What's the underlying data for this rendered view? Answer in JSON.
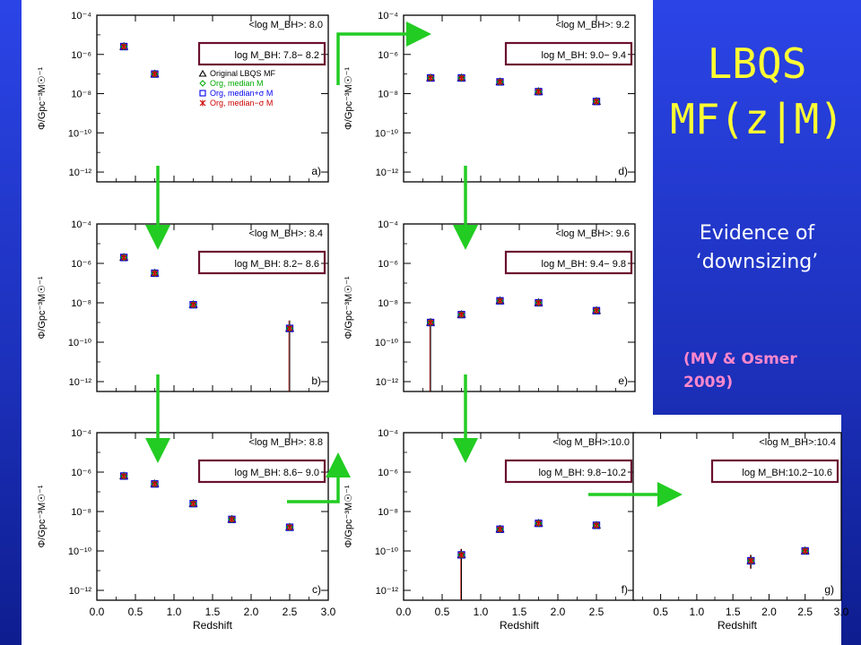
{
  "slide": {
    "title_line1": "LBQS",
    "title_line2": "MF(z|M)",
    "subtitle_line1": "Evidence of",
    "subtitle_line2": "‘downsizing’",
    "citation_line1": "(MV & Osmer",
    "citation_line2": "2009)",
    "colors": {
      "background": "#1f37c9",
      "title": "#ffff33",
      "subtitle": "#ffffff",
      "citation": "#ff88cc",
      "arrow": "#22cc22",
      "box": "#6b1030"
    }
  },
  "legend": [
    {
      "label": "Original LBQS MF",
      "symbol": "triangle",
      "color": "#000000"
    },
    {
      "label": "Org, median M",
      "symbol": "diamond",
      "color": "#00aa00"
    },
    {
      "label": "Org, median+σ M",
      "symbol": "square",
      "color": "#0000ee"
    },
    {
      "label": "Org, median−σ M",
      "symbol": "asterisk",
      "color": "#cc0000"
    }
  ],
  "axis": {
    "ylabel": "Φ/Gpc⁻³M☉⁻¹",
    "xlabel": "Redshift",
    "ytick_labels": [
      "10⁻¹²",
      "10⁻¹⁰",
      "10⁻⁸",
      "10⁻⁶",
      "10⁻⁴"
    ],
    "xtick_labels": [
      "0.0",
      "0.5",
      "1.0",
      "1.5",
      "2.0",
      "2.5",
      "3.0"
    ]
  },
  "chart_data": [
    {
      "type": "scatter",
      "panel": "a)",
      "mean_label": "<log M_BH>: 8.0",
      "range_label": "log M_BH: 7.8− 8.2",
      "xlim": [
        0,
        3
      ],
      "ylim_log10": [
        -12.5,
        -4
      ],
      "yscale": "log",
      "points": [
        {
          "x": 0.35,
          "log_phi": -5.6
        },
        {
          "x": 0.75,
          "log_phi": -7.0
        }
      ]
    },
    {
      "type": "scatter",
      "panel": "b)",
      "mean_label": "<log M_BH>: 8.4",
      "range_label": "log M_BH: 8.2− 8.6",
      "xlim": [
        0,
        3
      ],
      "ylim_log10": [
        -12.5,
        -4
      ],
      "yscale": "log",
      "points": [
        {
          "x": 0.35,
          "log_phi": -5.7
        },
        {
          "x": 0.75,
          "log_phi": -6.5
        },
        {
          "x": 1.25,
          "log_phi": -8.1
        },
        {
          "x": 2.5,
          "log_phi": -9.3,
          "err_low": -12.5,
          "err_high": -8.9
        }
      ]
    },
    {
      "type": "scatter",
      "panel": "c)",
      "mean_label": "<log M_BH>: 8.8",
      "range_label": "log M_BH: 8.6− 9.0",
      "xlim": [
        0,
        3
      ],
      "ylim_log10": [
        -12.5,
        -4
      ],
      "yscale": "log",
      "points": [
        {
          "x": 0.35,
          "log_phi": -6.2
        },
        {
          "x": 0.75,
          "log_phi": -6.6
        },
        {
          "x": 1.25,
          "log_phi": -7.6
        },
        {
          "x": 1.75,
          "log_phi": -8.4
        },
        {
          "x": 2.5,
          "log_phi": -8.8
        }
      ]
    },
    {
      "type": "scatter",
      "panel": "d)",
      "mean_label": "<log M_BH>: 9.2",
      "range_label": "log M_BH: 9.0− 9.4",
      "xlim": [
        0,
        3
      ],
      "ylim_log10": [
        -12.5,
        -4
      ],
      "yscale": "log",
      "points": [
        {
          "x": 0.35,
          "log_phi": -7.2
        },
        {
          "x": 0.75,
          "log_phi": -7.2
        },
        {
          "x": 1.25,
          "log_phi": -7.4
        },
        {
          "x": 1.75,
          "log_phi": -7.9
        },
        {
          "x": 2.5,
          "log_phi": -8.4
        }
      ]
    },
    {
      "type": "scatter",
      "panel": "e)",
      "mean_label": "<log M_BH>: 9.6",
      "range_label": "log M_BH: 9.4− 9.8",
      "xlim": [
        0,
        3
      ],
      "ylim_log10": [
        -12.5,
        -4
      ],
      "yscale": "log",
      "points": [
        {
          "x": 0.35,
          "log_phi": -9.0,
          "err_low": -12.5,
          "err_high": -8.8
        },
        {
          "x": 0.75,
          "log_phi": -8.6
        },
        {
          "x": 1.25,
          "log_phi": -7.9
        },
        {
          "x": 1.75,
          "log_phi": -8.0
        },
        {
          "x": 2.5,
          "log_phi": -8.4
        }
      ]
    },
    {
      "type": "scatter",
      "panel": "f)",
      "mean_label": "<log M_BH>:10.0",
      "range_label": "log M_BH: 9.8−10.2",
      "xlim": [
        0,
        3
      ],
      "ylim_log10": [
        -12.5,
        -4
      ],
      "yscale": "log",
      "points": [
        {
          "x": 0.75,
          "log_phi": -10.2,
          "err_low": -12.5,
          "err_high": -9.9
        },
        {
          "x": 1.25,
          "log_phi": -8.9
        },
        {
          "x": 1.75,
          "log_phi": -8.6
        },
        {
          "x": 2.5,
          "log_phi": -8.7
        }
      ]
    },
    {
      "type": "scatter",
      "panel": "g)",
      "mean_label": "<log M_BH>:10.4",
      "range_label": "log M_BH:10.2−10.6",
      "xlim": [
        0,
        3
      ],
      "ylim_log10": [
        -12.5,
        -4
      ],
      "yscale": "log",
      "points": [
        {
          "x": 1.75,
          "log_phi": -10.5,
          "err_low": -10.9,
          "err_high": -10.2
        },
        {
          "x": 2.5,
          "log_phi": -10.0
        }
      ]
    }
  ]
}
